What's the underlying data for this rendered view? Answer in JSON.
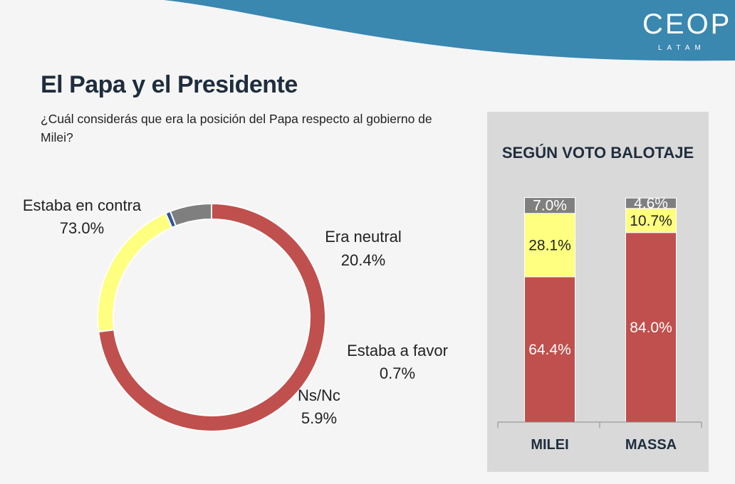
{
  "header": {
    "brand": "CEOP",
    "brand_sub": "LATAM"
  },
  "title": "El Papa y el Presidente",
  "question": "¿Cuál considerás que era la posición del Papa respecto al gobierno de Milei?",
  "colors": {
    "contra": "#c0504d",
    "neutral": "#ffff80",
    "favor": "#2f5597",
    "nsnc": "#7f7f7f",
    "wave": "#3a87b0"
  },
  "chart_data": [
    {
      "type": "pie",
      "title": "",
      "slices": [
        {
          "label": "Estaba en contra",
          "value": 73.0,
          "display": "73.0%",
          "color": "#c0504d"
        },
        {
          "label": "Era neutral",
          "value": 20.4,
          "display": "20.4%",
          "color": "#ffff80"
        },
        {
          "label": "Estaba a favor",
          "value": 0.7,
          "display": "0.7%",
          "color": "#2f5597"
        },
        {
          "label": "Ns/Nc",
          "value": 5.9,
          "display": "5.9%",
          "color": "#7f7f7f"
        }
      ]
    },
    {
      "type": "bar",
      "stacked": true,
      "title": "SEGÚN VOTO BALOTAJE",
      "categories": [
        "MILEI",
        "MASSA"
      ],
      "ylim": [
        0,
        100
      ],
      "series": [
        {
          "name": "Estaba en contra",
          "values": [
            64.4,
            84.0
          ],
          "display": [
            "64.4%",
            "84.0%"
          ],
          "color": "#c0504d",
          "text_color": "#ffffff"
        },
        {
          "name": "Era neutral",
          "values": [
            28.1,
            10.7
          ],
          "display": [
            "28.1%",
            "10.7%"
          ],
          "color": "#ffff80",
          "text_color": "#222222"
        },
        {
          "name": "Ns/Nc",
          "values": [
            7.0,
            4.6
          ],
          "display": [
            "7.0%",
            "4.6%"
          ],
          "color": "#7f7f7f",
          "text_color": "#ffffff"
        }
      ]
    }
  ]
}
